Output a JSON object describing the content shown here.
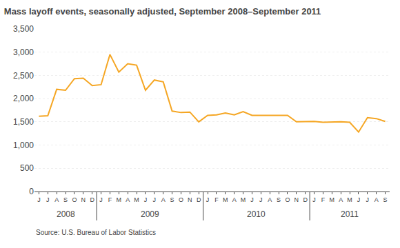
{
  "chart_data": {
    "type": "line",
    "title": "Mass layoff events, seasonally adjusted, September 2008–September 2011",
    "source": "Source: U.S. Bureau of Labor Statistics",
    "color": "#F5A623",
    "categories": [
      "J",
      "J",
      "A",
      "S",
      "O",
      "N",
      "D",
      "J",
      "F",
      "M",
      "A",
      "M",
      "J",
      "J",
      "A",
      "S",
      "O",
      "N",
      "D",
      "J",
      "F",
      "M",
      "A",
      "M",
      "J",
      "J",
      "A",
      "S",
      "O",
      "N",
      "D",
      "J",
      "F",
      "M",
      "A",
      "M",
      "J",
      "J",
      "A",
      "S"
    ],
    "values": [
      1620,
      1630,
      2200,
      2180,
      2430,
      2440,
      2280,
      2300,
      2950,
      2570,
      2750,
      2720,
      2180,
      2400,
      2360,
      1730,
      1700,
      1710,
      1500,
      1640,
      1650,
      1690,
      1650,
      1720,
      1640,
      1640,
      1640,
      1640,
      1640,
      1500,
      1510,
      1510,
      1490,
      1500,
      1500,
      1490,
      1280,
      1590,
      1570,
      1510
    ],
    "annotations": [
      {
        "text": "2008",
        "start": 0,
        "end": 7
      },
      {
        "text": "2009",
        "start": 7,
        "end": 19
      },
      {
        "text": "2010",
        "start": 19,
        "end": 31
      },
      {
        "text": "2011",
        "start": 31,
        "end": 40
      }
    ],
    "ylim": [
      0,
      3500
    ],
    "yticks": [
      0,
      500,
      {
        "value": 1000,
        "label": "1,000"
      },
      {
        "value": 1500,
        "label": "1,500"
      },
      {
        "value": 2000,
        "label": "2,000"
      },
      {
        "value": 2500,
        "label": "2,500"
      },
      {
        "value": 3000,
        "label": "3,000"
      },
      {
        "value": 3500,
        "label": "3,500"
      }
    ],
    "grid": true
  }
}
